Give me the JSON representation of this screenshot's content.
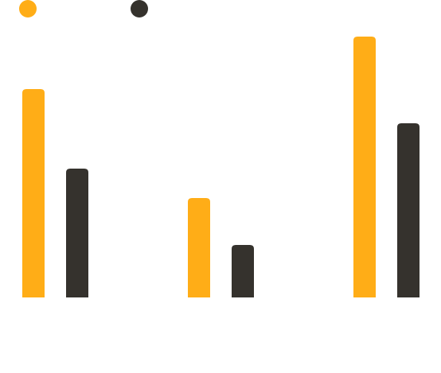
{
  "chart_data": {
    "type": "bar",
    "categories": [
      null,
      null,
      null
    ],
    "series": [
      {
        "color": "#ffad17",
        "values": [
          262,
          125,
          328
        ]
      },
      {
        "color": "#35322d",
        "values": [
          162,
          66,
          219
        ]
      }
    ]
  }
}
